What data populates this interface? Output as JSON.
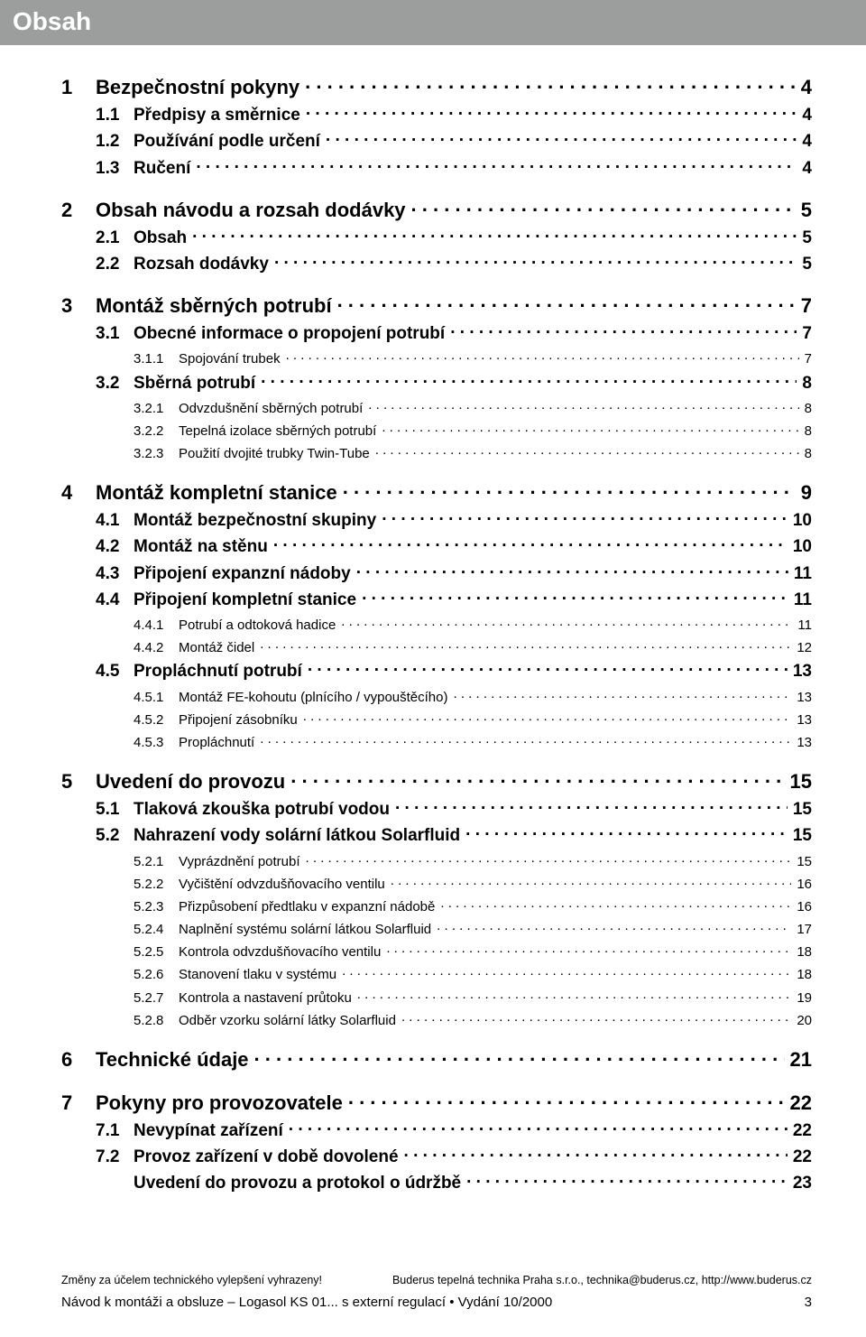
{
  "banner": "Obsah",
  "colors": {
    "banner_bg": "#9b9e9c",
    "banner_fg": "#ffffff",
    "text": "#000000",
    "page_bg": "#ffffff"
  },
  "typography": {
    "font_family": "Arial, Helvetica, sans-serif",
    "lvl1_size": 22,
    "lvl2_size": 19,
    "lvl3_size": 15,
    "footer_small": 12.5,
    "footer_main": 15
  },
  "toc": [
    {
      "lvl": 1,
      "num": "1",
      "title": "Bezpečnostní pokyny",
      "page": "4"
    },
    {
      "lvl": 2,
      "num": "1.1",
      "title": "Předpisy a směrnice",
      "page": "4"
    },
    {
      "lvl": 2,
      "num": "1.2",
      "title": "Používání podle určení",
      "page": "4"
    },
    {
      "lvl": 2,
      "num": "1.3",
      "title": "Ručení",
      "page": "4"
    },
    {
      "lvl": 1,
      "num": "2",
      "title": "Obsah návodu a rozsah dodávky",
      "page": "5"
    },
    {
      "lvl": 2,
      "num": "2.1",
      "title": "Obsah",
      "page": "5"
    },
    {
      "lvl": 2,
      "num": "2.2",
      "title": "Rozsah dodávky",
      "page": "5"
    },
    {
      "lvl": 1,
      "num": "3",
      "title": "Montáž sběrných potrubí",
      "page": "7"
    },
    {
      "lvl": 2,
      "num": "3.1",
      "title": "Obecné informace o propojení potrubí",
      "page": "7"
    },
    {
      "lvl": 3,
      "num": "3.1.1",
      "title": "Spojování trubek",
      "page": "7"
    },
    {
      "lvl": 2,
      "num": "3.2",
      "title": "Sběrná potrubí",
      "page": "8"
    },
    {
      "lvl": 3,
      "num": "3.2.1",
      "title": "Odvzdušnění sběrných potrubí",
      "page": "8"
    },
    {
      "lvl": 3,
      "num": "3.2.2",
      "title": "Tepelná izolace sběrných potrubí",
      "page": "8"
    },
    {
      "lvl": 3,
      "num": "3.2.3",
      "title": "Použití dvojité trubky Twin-Tube",
      "page": "8"
    },
    {
      "lvl": 1,
      "num": "4",
      "title": "Montáž kompletní stanice",
      "page": "9"
    },
    {
      "lvl": 2,
      "num": "4.1",
      "title": "Montáž bezpečnostní skupiny",
      "page": "10"
    },
    {
      "lvl": 2,
      "num": "4.2",
      "title": "Montáž na stěnu",
      "page": "10"
    },
    {
      "lvl": 2,
      "num": "4.3",
      "title": "Připojení expanzní nádoby",
      "page": "11"
    },
    {
      "lvl": 2,
      "num": "4.4",
      "title": "Připojení kompletní stanice",
      "page": "11"
    },
    {
      "lvl": 3,
      "num": "4.4.1",
      "title": "Potrubí a odtoková hadice",
      "page": "11"
    },
    {
      "lvl": 3,
      "num": "4.4.2",
      "title": "Montáž čidel",
      "page": "12"
    },
    {
      "lvl": 2,
      "num": "4.5",
      "title": "Propláchnutí potrubí",
      "page": "13"
    },
    {
      "lvl": 3,
      "num": "4.5.1",
      "title": "Montáž FE-kohoutu (plnícího / vypouštěcího)",
      "page": "13"
    },
    {
      "lvl": 3,
      "num": "4.5.2",
      "title": "Připojení zásobníku",
      "page": "13"
    },
    {
      "lvl": 3,
      "num": "4.5.3",
      "title": "Propláchnutí",
      "page": "13"
    },
    {
      "lvl": 1,
      "num": "5",
      "title": "Uvedení do provozu",
      "page": "15"
    },
    {
      "lvl": 2,
      "num": "5.1",
      "title": "Tlaková zkouška potrubí vodou",
      "page": "15"
    },
    {
      "lvl": 2,
      "num": "5.2",
      "title": "Nahrazení vody solární látkou Solarfluid",
      "page": "15"
    },
    {
      "lvl": 3,
      "num": "5.2.1",
      "title": "Vyprázdnění potrubí",
      "page": "15"
    },
    {
      "lvl": 3,
      "num": "5.2.2",
      "title": "Vyčištění odvzdušňovacího ventilu",
      "page": "16"
    },
    {
      "lvl": 3,
      "num": "5.2.3",
      "title": "Přizpůsobení předtlaku v expanzní nádobě",
      "page": "16"
    },
    {
      "lvl": 3,
      "num": "5.2.4",
      "title": "Naplnění systému solární látkou Solarfluid",
      "page": "17"
    },
    {
      "lvl": 3,
      "num": "5.2.5",
      "title": "Kontrola odvzdušňovacího ventilu",
      "page": "18"
    },
    {
      "lvl": 3,
      "num": "5.2.6",
      "title": "Stanovení tlaku v systému",
      "page": "18"
    },
    {
      "lvl": 3,
      "num": "5.2.7",
      "title": "Kontrola a nastavení průtoku",
      "page": "19"
    },
    {
      "lvl": 3,
      "num": "5.2.8",
      "title": "Odběr vzorku solární látky Solarfluid",
      "page": "20"
    },
    {
      "lvl": 1,
      "num": "6",
      "title": "Technické údaje",
      "page": "21"
    },
    {
      "lvl": 1,
      "num": "7",
      "title": "Pokyny pro provozovatele",
      "page": "22"
    },
    {
      "lvl": 2,
      "num": "7.1",
      "title": "Nevypínat zařízení",
      "page": "22"
    },
    {
      "lvl": 2,
      "num": "7.2",
      "title": "Provoz zařízení v době dovolené",
      "page": "22"
    },
    {
      "lvl": 2,
      "num": "",
      "title": "Uvedení do provozu a protokol o údržbě",
      "page": "23"
    }
  ],
  "footer": {
    "changes_note": "Změny za účelem technického vylepšení vyhrazeny!",
    "company": "Buderus tepelná technika Praha s.r.o., technika@buderus.cz, http://www.buderus.cz",
    "doc_title": "Návod k montáži a obsluze – Logasol KS 01... s externí regulací • Vydání 10/2000",
    "page_no": "3"
  }
}
